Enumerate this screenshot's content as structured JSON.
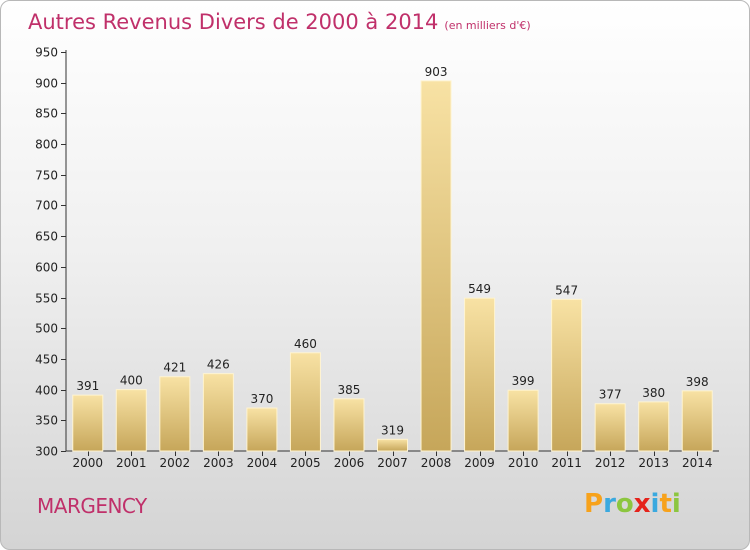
{
  "chart_data": {
    "type": "bar",
    "title": "Autres Revenus Divers de 2000 à 2014",
    "unit_note": "(en milliers d'€)",
    "categories": [
      "2000",
      "2001",
      "2002",
      "2003",
      "2004",
      "2005",
      "2006",
      "2007",
      "2008",
      "2009",
      "2010",
      "2011",
      "2012",
      "2013",
      "2014"
    ],
    "values": [
      391,
      400,
      421,
      426,
      370,
      460,
      385,
      319,
      903,
      549,
      399,
      547,
      377,
      380,
      398
    ],
    "ylim": [
      300,
      950
    ],
    "yticks": [
      300,
      350,
      400,
      450,
      500,
      550,
      600,
      650,
      700,
      750,
      800,
      850,
      900,
      950
    ],
    "grid": false,
    "xlabel": "",
    "ylabel": ""
  },
  "location_label": "MARGENCY",
  "logo": {
    "text": "Proxiti",
    "letters": [
      {
        "ch": "P",
        "color": "#f7a21b"
      },
      {
        "ch": "r",
        "color": "#3aa9df"
      },
      {
        "ch": "o",
        "color": "#8cc63f"
      },
      {
        "ch": "x",
        "color": "#e5231b"
      },
      {
        "ch": "i",
        "color": "#3aa9df"
      },
      {
        "ch": "t",
        "color": "#f7a21b"
      },
      {
        "ch": "i",
        "color": "#8cc63f"
      }
    ]
  },
  "colors": {
    "title": "#c0306a",
    "bar_light": "#f6dd9a",
    "bar_dark": "#c8a95e",
    "axis": "#333333"
  }
}
